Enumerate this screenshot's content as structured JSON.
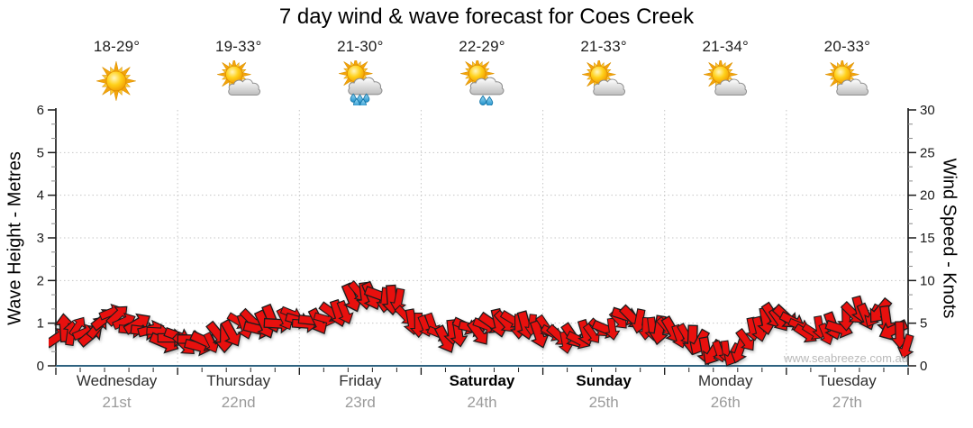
{
  "title": "7 day wind & wave forecast for Coes Creek",
  "watermark": "www.seabreeze.com.au",
  "days": [
    {
      "name": "Wednesday",
      "date": "21st",
      "temp": "18-29°",
      "icon": "sunny",
      "weekend": false
    },
    {
      "name": "Thursday",
      "date": "22nd",
      "temp": "19-33°",
      "icon": "partly-cloudy",
      "weekend": false
    },
    {
      "name": "Friday",
      "date": "23rd",
      "temp": "21-30°",
      "icon": "showers",
      "weekend": false
    },
    {
      "name": "Saturday",
      "date": "24th",
      "temp": "22-29°",
      "icon": "light-showers",
      "weekend": true
    },
    {
      "name": "Sunday",
      "date": "25th",
      "temp": "21-33°",
      "icon": "partly-cloudy",
      "weekend": true
    },
    {
      "name": "Monday",
      "date": "26th",
      "temp": "21-34°",
      "icon": "partly-cloudy",
      "weekend": false
    },
    {
      "name": "Tuesday",
      "date": "27th",
      "temp": "20-33°",
      "icon": "partly-cloudy",
      "weekend": false
    }
  ],
  "axes": {
    "left": {
      "title": "Wave Height - Metres",
      "range": [
        0,
        6
      ],
      "ticks": [
        0,
        1,
        2,
        3,
        4,
        5,
        6
      ]
    },
    "right": {
      "title": "Wind Speed - Knots",
      "range": [
        0,
        30
      ],
      "ticks": [
        0,
        5,
        10,
        15,
        20,
        25,
        30
      ]
    }
  },
  "colors": {
    "arrow": "#e8100e",
    "arrow_outline": "#1c1c1c",
    "axis_bottom": "#2e6280",
    "grid": "#c6c6c6",
    "tick_major": "#1a1a1a",
    "tick_minor": "#8a8a8a",
    "date_text": "#9a9a9a",
    "watermark": "#b9b9b9"
  },
  "chart_data": {
    "type": "wind-arrows",
    "title": "7 day wind & wave forecast for Coes Creek",
    "x_unit": "days",
    "x_range": [
      0,
      7
    ],
    "x_categories": [
      "Wednesday 21st",
      "Thursday 22nd",
      "Friday 23rd",
      "Saturday 24th",
      "Sunday 25th",
      "Monday 26th",
      "Tuesday 27th"
    ],
    "y_left": {
      "label": "Wave Height - Metres",
      "range": [
        0,
        6
      ]
    },
    "y_right": {
      "label": "Wind Speed - Knots",
      "range": [
        0,
        30
      ]
    },
    "grid": true,
    "legend": false,
    "series": [
      {
        "name": "Wind speed (knots)",
        "style": "red-direction-arrows",
        "keyframes": [
          {
            "t": 0.0,
            "knots": 3.6
          },
          {
            "t": 0.12,
            "knots": 4.6
          },
          {
            "t": 0.28,
            "knots": 4.0
          },
          {
            "t": 0.45,
            "knots": 5.6
          },
          {
            "t": 0.62,
            "knots": 4.6
          },
          {
            "t": 0.8,
            "knots": 3.8
          },
          {
            "t": 1.0,
            "knots": 3.0
          },
          {
            "t": 1.12,
            "knots": 2.7
          },
          {
            "t": 1.3,
            "knots": 3.4
          },
          {
            "t": 1.5,
            "knots": 4.6
          },
          {
            "t": 1.7,
            "knots": 5.0
          },
          {
            "t": 1.95,
            "knots": 5.4
          },
          {
            "t": 2.1,
            "knots": 5.0
          },
          {
            "t": 2.3,
            "knots": 5.6
          },
          {
            "t": 2.5,
            "knots": 8.2
          },
          {
            "t": 2.62,
            "knots": 8.8
          },
          {
            "t": 2.75,
            "knots": 8.0
          },
          {
            "t": 2.9,
            "knots": 6.0
          },
          {
            "t": 3.05,
            "knots": 4.6
          },
          {
            "t": 3.2,
            "knots": 3.7
          },
          {
            "t": 3.4,
            "knots": 4.2
          },
          {
            "t": 3.6,
            "knots": 5.0
          },
          {
            "t": 3.8,
            "knots": 4.8
          },
          {
            "t": 4.0,
            "knots": 4.2
          },
          {
            "t": 4.15,
            "knots": 3.4
          },
          {
            "t": 4.3,
            "knots": 3.3
          },
          {
            "t": 4.5,
            "knots": 4.6
          },
          {
            "t": 4.65,
            "knots": 5.4
          },
          {
            "t": 4.8,
            "knots": 5.0
          },
          {
            "t": 5.0,
            "knots": 4.4
          },
          {
            "t": 5.15,
            "knots": 3.2
          },
          {
            "t": 5.3,
            "knots": 2.2
          },
          {
            "t": 5.45,
            "knots": 1.2
          },
          {
            "t": 5.6,
            "knots": 2.2
          },
          {
            "t": 5.75,
            "knots": 4.0
          },
          {
            "t": 5.95,
            "knots": 5.6
          },
          {
            "t": 6.1,
            "knots": 4.4
          },
          {
            "t": 6.25,
            "knots": 3.8
          },
          {
            "t": 6.45,
            "knots": 5.0
          },
          {
            "t": 6.65,
            "knots": 6.4
          },
          {
            "t": 6.8,
            "knots": 5.6
          },
          {
            "t": 6.9,
            "knots": 4.2
          },
          {
            "t": 7.0,
            "knots": 2.6
          }
        ]
      }
    ],
    "direction_keyframes": [
      {
        "t": 0.0,
        "deg": 30
      },
      {
        "t": 0.5,
        "deg": 70
      },
      {
        "t": 1.0,
        "deg": 110
      },
      {
        "t": 1.5,
        "deg": 150
      },
      {
        "t": 2.0,
        "deg": 120
      },
      {
        "t": 2.5,
        "deg": 140
      },
      {
        "t": 3.0,
        "deg": 160
      },
      {
        "t": 3.5,
        "deg": 130
      },
      {
        "t": 4.0,
        "deg": 150
      },
      {
        "t": 4.5,
        "deg": 140
      },
      {
        "t": 5.0,
        "deg": 160
      },
      {
        "t": 5.45,
        "deg": 185
      },
      {
        "t": 5.8,
        "deg": 150
      },
      {
        "t": 6.2,
        "deg": 130
      },
      {
        "t": 6.6,
        "deg": 150
      },
      {
        "t": 6.9,
        "deg": 215
      },
      {
        "t": 7.0,
        "deg": 225
      }
    ]
  }
}
